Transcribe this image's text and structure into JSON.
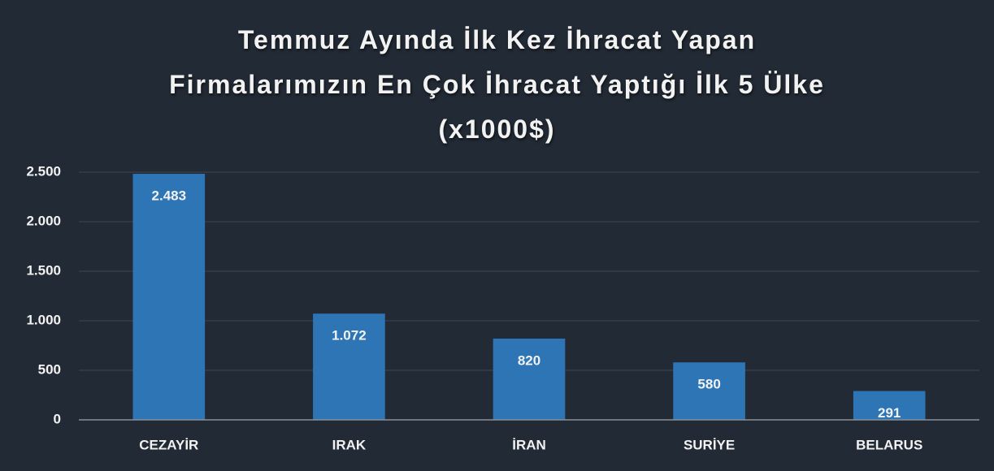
{
  "chart_data": {
    "type": "bar",
    "title": "Temmuz Ayında İlk Kez İhracat Yapan\nFirmalarımızın En Çok İhracat Yaptığı İlk 5 Ülke\n(x1000$)",
    "categories": [
      "CEZAYİR",
      "IRAK",
      "İRAN",
      "SURİYE",
      "BELARUS"
    ],
    "values": [
      2483,
      1072,
      820,
      580,
      291
    ],
    "value_labels": [
      "2.483",
      "1.072",
      "820",
      "580",
      "291"
    ],
    "color": "#2e75b6",
    "ylim": [
      0,
      2500
    ],
    "yticks": [
      0,
      500,
      {
        "value": 1000,
        "label": "1.000"
      },
      {
        "value": 1500,
        "label": "1.500"
      },
      {
        "value": 2000,
        "label": "2.000"
      },
      {
        "value": 2500,
        "label": "2.500"
      }
    ],
    "grid": true
  }
}
